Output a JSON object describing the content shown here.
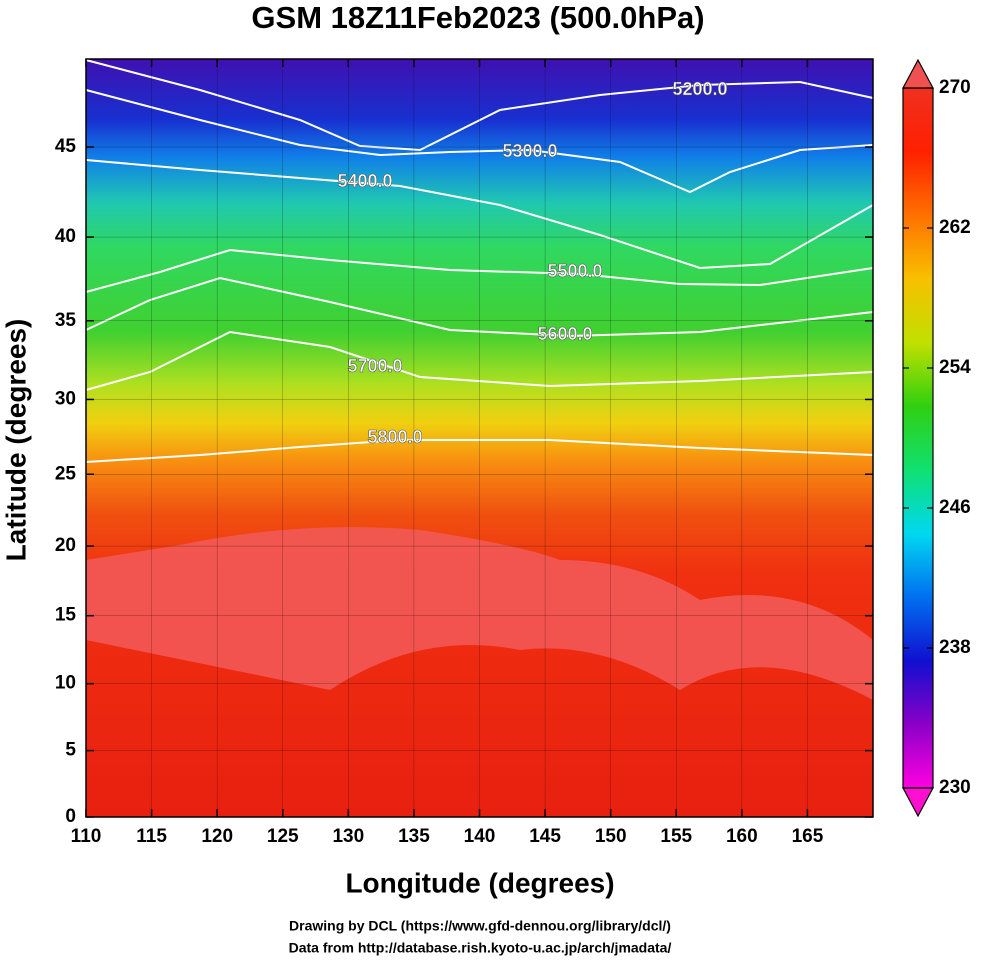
{
  "chart_data": {
    "type": "map",
    "title": "GSM 18Z11Feb2023 (500.0hPa)",
    "x_label": "Longitude (degrees)",
    "y_label": "Latitude  (degrees)",
    "projection": "mercator",
    "xlim": [
      110,
      170
    ],
    "ylim": [
      0,
      49.5
    ],
    "xticks": [
      110,
      115,
      120,
      125,
      130,
      135,
      140,
      145,
      150,
      155,
      160,
      165
    ],
    "yticks": [
      0,
      5,
      10,
      15,
      20,
      25,
      30,
      35,
      40,
      45
    ],
    "contours": [
      {
        "value": 5200,
        "label": "5200.0"
      },
      {
        "value": 5300,
        "label": "5300.0"
      },
      {
        "value": 5400,
        "label": "5400.0"
      },
      {
        "value": 5500,
        "label": "5500.0"
      },
      {
        "value": 5600,
        "label": "5600.0"
      },
      {
        "value": 5700,
        "label": "5700.0"
      },
      {
        "value": 5800,
        "label": "5800.0"
      }
    ],
    "contour_color": "#ffffff",
    "colorbar": {
      "lim": [
        230,
        270
      ],
      "ticks": [
        230,
        238,
        246,
        254,
        262,
        270
      ],
      "colormap": [
        "#ff00e0",
        "#8a00c8",
        "#1010d0",
        "#0070f0",
        "#00d8f0",
        "#10e070",
        "#30d010",
        "#c0e000",
        "#f8c000",
        "#ff7000",
        "#ff2000",
        "#f03020"
      ],
      "over_color": "#f05050",
      "under_color": "#ff10d0"
    },
    "credits": [
      "Drawing by DCL (https://www.gfd-dennou.org/library/dcl/)",
      "Data from http://database.rish.kyoto-u.ac.jp/arch/jmadata/"
    ]
  }
}
